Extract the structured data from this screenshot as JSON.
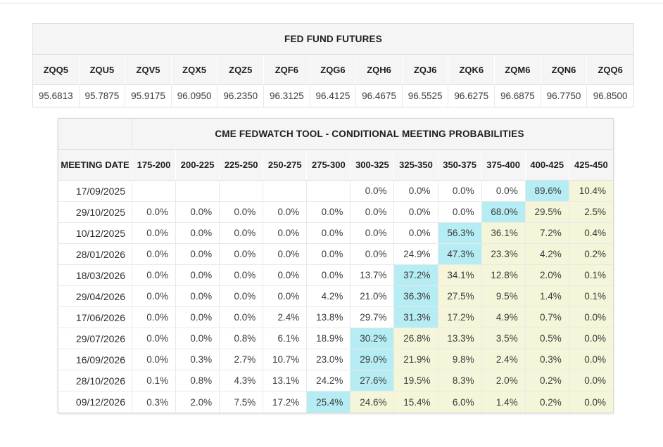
{
  "colors": {
    "header_bg": "#f5f5f5",
    "border": "#e0e0e0",
    "divider": "#e2e2e2",
    "cyan": "#b6edf4",
    "yellow": "#f5f6d9"
  },
  "futures_table": {
    "title": "FED FUND FUTURES",
    "columns": [
      "ZQQ5",
      "ZQU5",
      "ZQV5",
      "ZQX5",
      "ZQZ5",
      "ZQF6",
      "ZQG6",
      "ZQH6",
      "ZQJ6",
      "ZQK6",
      "ZQM6",
      "ZQN6",
      "ZQQ6"
    ],
    "values": [
      "95.6813",
      "95.7875",
      "95.9175",
      "96.0950",
      "96.2350",
      "96.3125",
      "96.4125",
      "96.4675",
      "96.5525",
      "96.6275",
      "96.6875",
      "96.7750",
      "96.8500"
    ]
  },
  "fedwatch_table": {
    "title": "CME FEDWATCH TOOL - CONDITIONAL MEETING PROBABILITIES",
    "date_header": "MEETING DATE",
    "rate_columns": [
      "175-200",
      "200-225",
      "225-250",
      "250-275",
      "275-300",
      "300-325",
      "325-350",
      "350-375",
      "375-400",
      "400-425",
      "425-450"
    ],
    "rows": [
      {
        "date": "17/09/2025",
        "values": [
          "",
          "",
          "",
          "",
          "",
          "0.0%",
          "0.0%",
          "0.0%",
          "0.0%",
          "89.6%",
          "10.4%"
        ],
        "max_index": 9
      },
      {
        "date": "29/10/2025",
        "values": [
          "0.0%",
          "0.0%",
          "0.0%",
          "0.0%",
          "0.0%",
          "0.0%",
          "0.0%",
          "0.0%",
          "68.0%",
          "29.5%",
          "2.5%"
        ],
        "max_index": 8
      },
      {
        "date": "10/12/2025",
        "values": [
          "0.0%",
          "0.0%",
          "0.0%",
          "0.0%",
          "0.0%",
          "0.0%",
          "0.0%",
          "56.3%",
          "36.1%",
          "7.2%",
          "0.4%"
        ],
        "max_index": 7
      },
      {
        "date": "28/01/2026",
        "values": [
          "0.0%",
          "0.0%",
          "0.0%",
          "0.0%",
          "0.0%",
          "0.0%",
          "24.9%",
          "47.3%",
          "23.3%",
          "4.2%",
          "0.2%"
        ],
        "max_index": 7
      },
      {
        "date": "18/03/2026",
        "values": [
          "0.0%",
          "0.0%",
          "0.0%",
          "0.0%",
          "0.0%",
          "13.7%",
          "37.2%",
          "34.1%",
          "12.8%",
          "2.0%",
          "0.1%"
        ],
        "max_index": 6
      },
      {
        "date": "29/04/2026",
        "values": [
          "0.0%",
          "0.0%",
          "0.0%",
          "0.0%",
          "4.2%",
          "21.0%",
          "36.3%",
          "27.5%",
          "9.5%",
          "1.4%",
          "0.1%"
        ],
        "max_index": 6
      },
      {
        "date": "17/06/2026",
        "values": [
          "0.0%",
          "0.0%",
          "0.0%",
          "2.4%",
          "13.8%",
          "29.7%",
          "31.3%",
          "17.2%",
          "4.9%",
          "0.7%",
          "0.0%"
        ],
        "max_index": 6
      },
      {
        "date": "29/07/2026",
        "values": [
          "0.0%",
          "0.0%",
          "0.8%",
          "6.1%",
          "18.9%",
          "30.2%",
          "26.8%",
          "13.3%",
          "3.5%",
          "0.5%",
          "0.0%"
        ],
        "max_index": 5
      },
      {
        "date": "16/09/2026",
        "values": [
          "0.0%",
          "0.3%",
          "2.7%",
          "10.7%",
          "23.0%",
          "29.0%",
          "21.9%",
          "9.8%",
          "2.4%",
          "0.3%",
          "0.0%"
        ],
        "max_index": 5
      },
      {
        "date": "28/10/2026",
        "values": [
          "0.1%",
          "0.8%",
          "4.3%",
          "13.1%",
          "24.2%",
          "27.6%",
          "19.5%",
          "8.3%",
          "2.0%",
          "0.2%",
          "0.0%"
        ],
        "max_index": 5
      },
      {
        "date": "09/12/2026",
        "values": [
          "0.3%",
          "2.0%",
          "7.5%",
          "17.2%",
          "25.4%",
          "24.6%",
          "15.4%",
          "6.0%",
          "1.4%",
          "0.2%",
          "0.0%"
        ],
        "max_index": 4
      }
    ]
  }
}
